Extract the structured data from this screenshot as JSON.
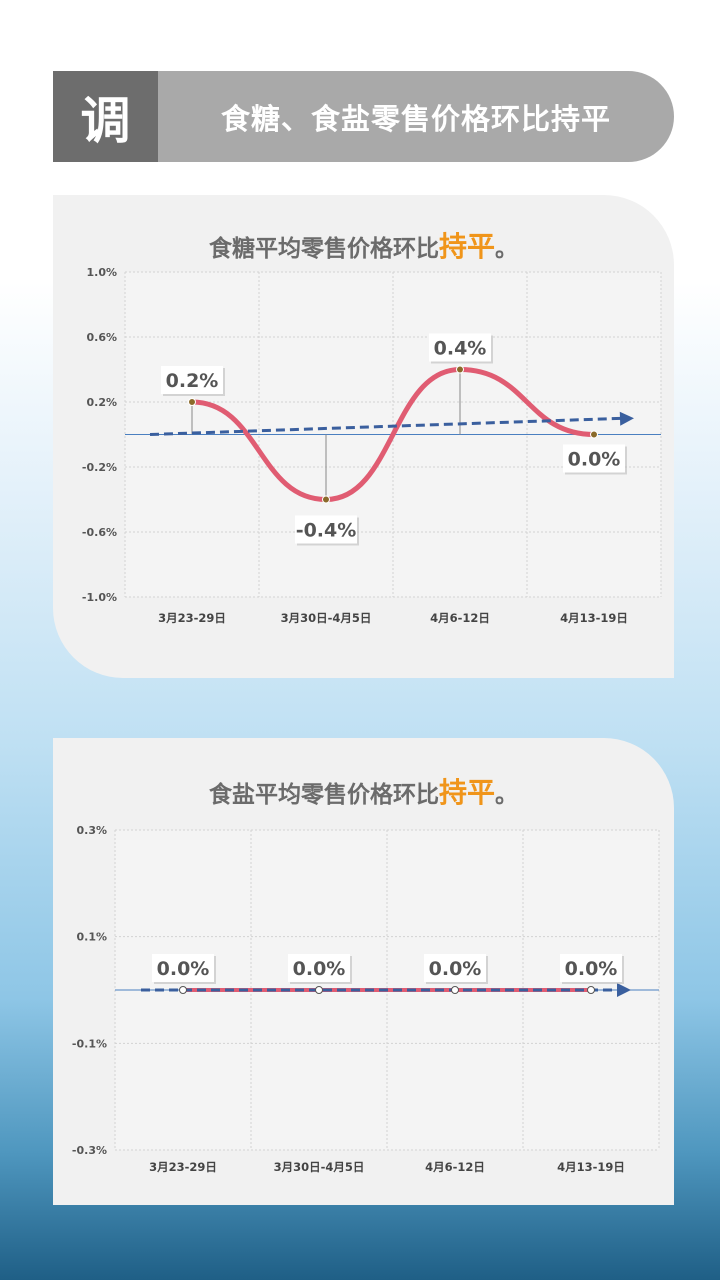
{
  "header": {
    "badge": "调",
    "title": "食糖、食盐零售价格环比持平"
  },
  "charts": [
    {
      "title_prefix": "食糖平均零售价格环比",
      "title_highlight": "持平",
      "title_suffix": "。"
    },
    {
      "title_prefix": "食盐平均零售价格环比",
      "title_highlight": "持平",
      "title_suffix": "。"
    }
  ],
  "colors": {
    "line": "#e05c72",
    "trend": "#3a5f9e",
    "zero": "#4a7fc0",
    "highlight": "#f0951a"
  },
  "chart_data": [
    {
      "type": "line",
      "categories": [
        "3月23-29日",
        "3月30日-4月5日",
        "4月6-12日",
        "4月13-19日"
      ],
      "values": [
        0.2,
        -0.4,
        0.4,
        0.0
      ],
      "data_labels": [
        "0.2%",
        "-0.4%",
        "0.4%",
        "0.0%"
      ],
      "ylim": [
        -1.0,
        1.0
      ],
      "yticks": [
        1.0,
        0.6,
        0.2,
        -0.2,
        -0.6,
        -1.0
      ],
      "ytick_labels": [
        "1.0%",
        "0.6%",
        "0.2%",
        "-0.2%",
        "-0.6%",
        "-1.0%"
      ],
      "trend": [
        0.0,
        0.1
      ],
      "grid": true
    },
    {
      "type": "line",
      "categories": [
        "3月23-29日",
        "3月30日-4月5日",
        "4月6-12日",
        "4月13-19日"
      ],
      "values": [
        0.0,
        0.0,
        0.0,
        0.0
      ],
      "data_labels": [
        "0.0%",
        "0.0%",
        "0.0%",
        "0.0%"
      ],
      "ylim": [
        -0.3,
        0.3
      ],
      "yticks": [
        0.3,
        0.1,
        -0.1,
        -0.3
      ],
      "ytick_labels": [
        "0.3%",
        "0.1%",
        "-0.1%",
        "-0.3%"
      ],
      "trend": [
        0.0,
        0.0
      ],
      "grid": true
    }
  ]
}
